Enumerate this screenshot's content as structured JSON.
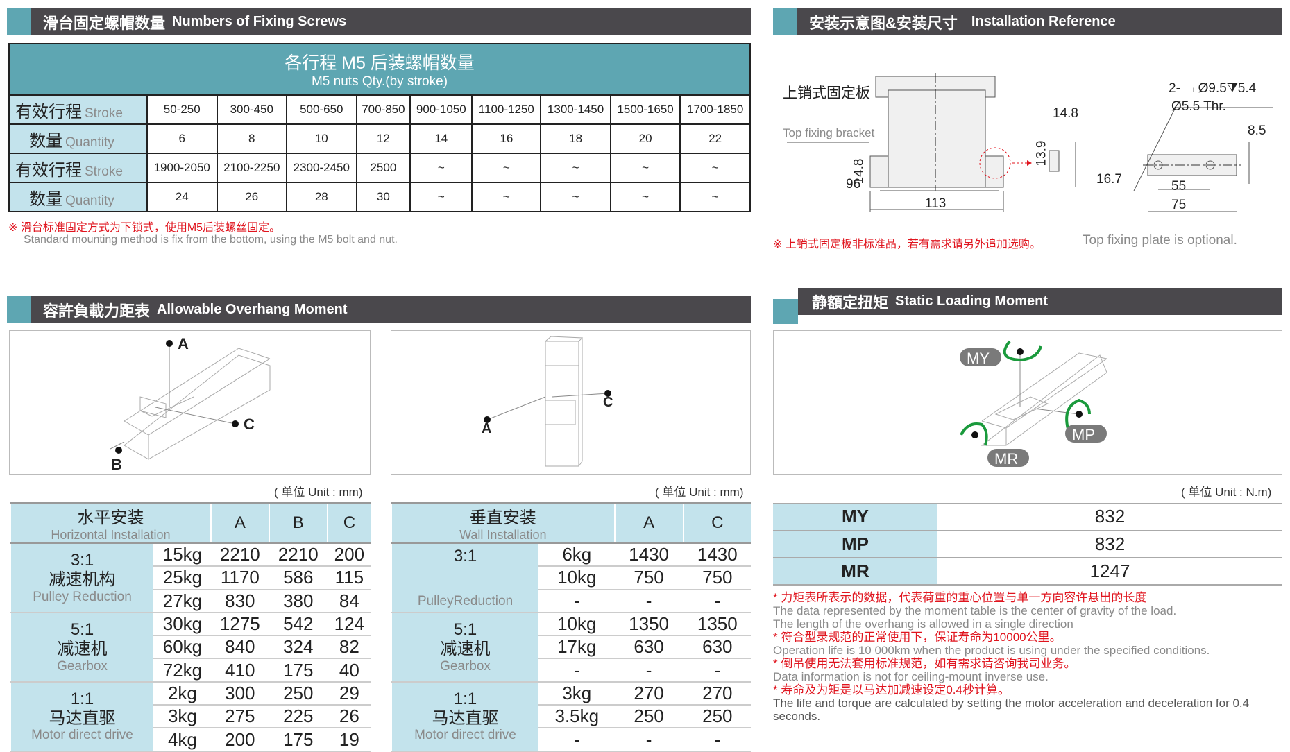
{
  "screws": {
    "title_cn": "滑台固定螺帽数量",
    "title_en": "Numbers of Fixing Screws",
    "table_title_cn": "各行程 M5 后装螺帽数量",
    "table_title_en": "M5 nuts Qty.(by stroke)",
    "stroke_cn": "有效行程",
    "stroke_en": "Stroke",
    "qty_cn": "数量",
    "qty_en": "Quantity",
    "rows": [
      {
        "type": "stroke",
        "values": [
          "50-250",
          "300-450",
          "500-650",
          "700-850",
          "900-1050",
          "1100-1250",
          "1300-1450",
          "1500-1650",
          "1700-1850"
        ]
      },
      {
        "type": "qty",
        "values": [
          "6",
          "8",
          "10",
          "12",
          "14",
          "16",
          "18",
          "20",
          "22"
        ]
      },
      {
        "type": "stroke",
        "values": [
          "1900-2050",
          "2100-2250",
          "2300-2450",
          "2500",
          "~",
          "~",
          "~",
          "~",
          "~"
        ]
      },
      {
        "type": "qty",
        "values": [
          "24",
          "26",
          "28",
          "30",
          "~",
          "~",
          "~",
          "~",
          "~"
        ]
      }
    ],
    "note_cn": "※ 滑台标准固定方式为下锁式，使用M5后装螺丝固定。",
    "note_en": "Standard mounting method is fix from the bottom, using the M5 bolt and nut."
  },
  "install": {
    "title_cn": "安装示意图&安装尺寸",
    "title_en": "Installation Reference",
    "label_cn": "上销式固定板",
    "label_en": "Top fixing bracket",
    "dims": {
      "d96": "96",
      "d113": "113",
      "d148a": "14.8",
      "d148b": "14.8",
      "d139": "13.9",
      "d167": "16.7",
      "d85": "8.5",
      "d55": "55",
      "d75": "75",
      "hole1": "2- ⌴ Ø9.5⧩5.4",
      "hole2": "Ø5.5 Thr."
    },
    "note_cn": "※ 上销式固定板非标准品，若有需求请另外追加选购。",
    "note_en": "Top fixing plate is optional."
  },
  "overhang": {
    "title_cn": "容許負載力距表",
    "title_en": "Allowable Overhang Moment",
    "unit": "( 单位 Unit : mm)",
    "labels": {
      "A": "A",
      "B": "B",
      "C": "C"
    },
    "horizontal": {
      "head_cn": "水平安装",
      "head_en": "Horizontal Installation",
      "cols": [
        "A",
        "B",
        "C"
      ],
      "groups": [
        {
          "ratio": "3:1",
          "cn": "减速机构",
          "en": "Pulley Reduction",
          "rows": [
            [
              "15kg",
              "2210",
              "2210",
              "200"
            ],
            [
              "25kg",
              "1170",
              "586",
              "115"
            ],
            [
              "27kg",
              "830",
              "380",
              "84"
            ]
          ]
        },
        {
          "ratio": "5:1",
          "cn": "减速机",
          "en": "Gearbox",
          "rows": [
            [
              "30kg",
              "1275",
              "542",
              "124"
            ],
            [
              "60kg",
              "840",
              "324",
              "82"
            ],
            [
              "72kg",
              "410",
              "175",
              "40"
            ]
          ]
        },
        {
          "ratio": "1:1",
          "cn": "马达直驱",
          "en": "Motor direct  drive",
          "rows": [
            [
              "2kg",
              "300",
              "250",
              "29"
            ],
            [
              "3kg",
              "275",
              "225",
              "26"
            ],
            [
              "4kg",
              "200",
              "175",
              "19"
            ]
          ]
        }
      ]
    },
    "wall": {
      "head_cn": "垂直安装",
      "head_en": "Wall Installation",
      "cols": [
        "A",
        "C"
      ],
      "groups": [
        {
          "ratio": "3:1",
          "cn": "",
          "en": "PulleyReduction",
          "rows": [
            [
              "6kg",
              "1430",
              "1430"
            ],
            [
              "10kg",
              "750",
              "750"
            ],
            [
              "-",
              "-",
              "-"
            ]
          ]
        },
        {
          "ratio": "5:1",
          "cn": "减速机",
          "en": "Gearbox",
          "rows": [
            [
              "10kg",
              "1350",
              "1350"
            ],
            [
              "17kg",
              "630",
              "630"
            ],
            [
              "-",
              "-",
              "-"
            ]
          ]
        },
        {
          "ratio": "1:1",
          "cn": "马达直驱",
          "en": "Motor direct drive",
          "rows": [
            [
              "3kg",
              "270",
              "270"
            ],
            [
              "3.5kg",
              "250",
              "250"
            ],
            [
              "-",
              "-",
              "-"
            ]
          ]
        }
      ]
    }
  },
  "static": {
    "title_cn": "静額定扭矩",
    "title_en": "Static Loading Moment",
    "unit": "( 单位 Unit : N.m)",
    "rows": [
      [
        "MY",
        "832"
      ],
      [
        "MP",
        "832"
      ],
      [
        "MR",
        "1247"
      ]
    ],
    "notes": [
      {
        "c": "red",
        "t": "* 力矩表所表示的数据，代表荷重的重心位置与单一方向容许悬出的长度"
      },
      {
        "c": "grey",
        "t": "The data represented by the moment table is the center of gravity of the load."
      },
      {
        "c": "grey",
        "t": "The length of the overhang is allowed in a single direction"
      },
      {
        "c": "red",
        "t": "* 符合型录规范的正常使用下，保证寿命为10000公里。"
      },
      {
        "c": "grey",
        "t": "Operation life is 10 000km when the product is using under the specified conditions."
      },
      {
        "c": "red",
        "t": "* 倒吊使用无法套用标准规范，如有需求请咨询我司业务。"
      },
      {
        "c": "grey",
        "t": "Data information is not for ceiling-mount inverse use."
      },
      {
        "c": "red",
        "t": "* 寿命及为矩是以马达加减速设定0.4秒计算。"
      },
      {
        "c": "dark",
        "t": "The life and torque are calculated by setting the motor acceleration and deceleration for 0.4 seconds."
      }
    ]
  },
  "colors": {
    "teal": "#5ea6b2",
    "light_blue": "#c3e3ec",
    "header": "#4a484c",
    "red": "#e0141e",
    "arrow_green": "#1a9a3c"
  }
}
